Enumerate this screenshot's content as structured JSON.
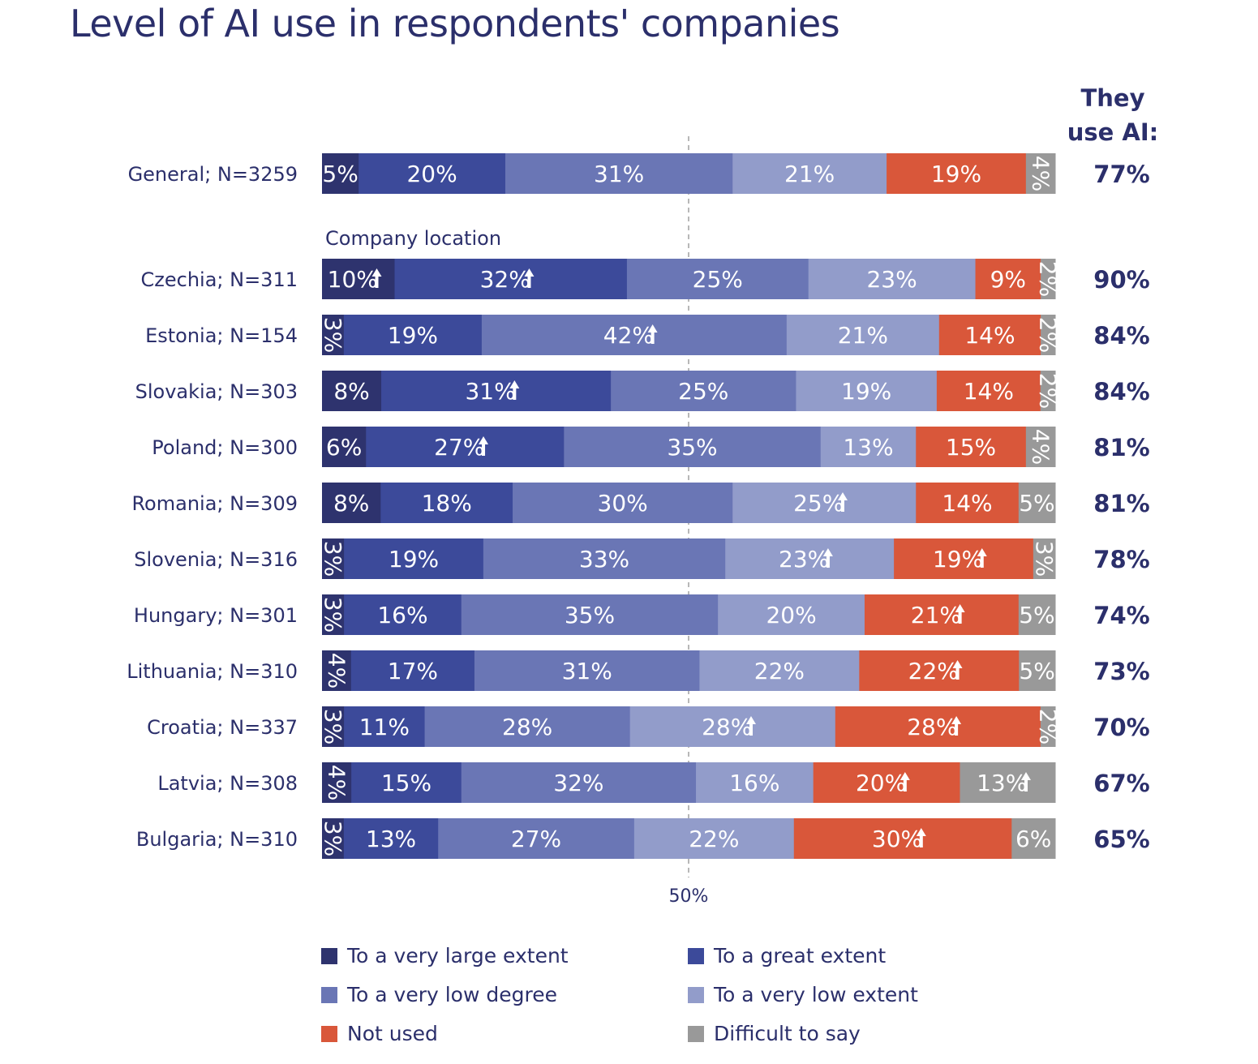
{
  "title": "Level of AI use in respondents' companies",
  "chart_data": {
    "type": "bar",
    "orientation": "horizontal",
    "stacked": true,
    "section_label": "Company location",
    "total_header": [
      "They",
      "use AI:"
    ],
    "axis_marker_label": "50%",
    "series": [
      {
        "name": "To a very large extent",
        "color": "#2e336e"
      },
      {
        "name": "To a great extent",
        "color": "#3c4a9a"
      },
      {
        "name": "To a very low degree",
        "color": "#6a76b5"
      },
      {
        "name": "To a very low extent",
        "color": "#929cca"
      },
      {
        "name": "Not used",
        "color": "#d9573a"
      },
      {
        "name": "Difficult to say",
        "color": "#999999"
      }
    ],
    "rows": [
      {
        "label": "General; N=3259",
        "values": [
          5,
          20,
          31,
          21,
          19,
          4
        ],
        "labels": [
          "5%",
          "20%",
          "31%",
          "21%",
          "19%",
          "4%"
        ],
        "up": [
          false,
          false,
          false,
          false,
          false,
          false
        ],
        "vertical": [
          false,
          false,
          false,
          false,
          false,
          true
        ],
        "total": "77%"
      },
      {
        "label": "Czechia; N=311",
        "values": [
          10,
          32,
          25,
          23,
          9,
          2
        ],
        "labels": [
          "10%",
          "32%",
          "25%",
          "23%",
          "9%",
          "2%"
        ],
        "up": [
          true,
          true,
          false,
          false,
          false,
          false
        ],
        "vertical": [
          false,
          false,
          false,
          false,
          false,
          true
        ],
        "total": "90%"
      },
      {
        "label": "Estonia; N=154",
        "values": [
          3,
          19,
          42,
          21,
          14,
          2
        ],
        "labels": [
          "3%",
          "19%",
          "42%",
          "21%",
          "14%",
          "2%"
        ],
        "up": [
          false,
          false,
          true,
          false,
          false,
          false
        ],
        "vertical": [
          true,
          false,
          false,
          false,
          false,
          true
        ],
        "total": "84%"
      },
      {
        "label": "Slovakia; N=303",
        "values": [
          8,
          31,
          25,
          19,
          14,
          2
        ],
        "labels": [
          "8%",
          "31%",
          "25%",
          "19%",
          "14%",
          "2%"
        ],
        "up": [
          false,
          true,
          false,
          false,
          false,
          false
        ],
        "vertical": [
          false,
          false,
          false,
          false,
          false,
          true
        ],
        "total": "84%"
      },
      {
        "label": "Poland; N=300",
        "values": [
          6,
          27,
          35,
          13,
          15,
          4
        ],
        "labels": [
          "6%",
          "27%",
          "35%",
          "13%",
          "15%",
          "4%"
        ],
        "up": [
          false,
          true,
          false,
          false,
          false,
          false
        ],
        "vertical": [
          false,
          false,
          false,
          false,
          false,
          true
        ],
        "total": "81%"
      },
      {
        "label": "Romania; N=309",
        "values": [
          8,
          18,
          30,
          25,
          14,
          5
        ],
        "labels": [
          "8%",
          "18%",
          "30%",
          "25%",
          "14%",
          "5%"
        ],
        "up": [
          false,
          false,
          false,
          true,
          false,
          false
        ],
        "vertical": [
          false,
          false,
          false,
          false,
          false,
          false
        ],
        "total": "81%"
      },
      {
        "label": "Slovenia; N=316",
        "values": [
          3,
          19,
          33,
          23,
          19,
          3
        ],
        "labels": [
          "3%",
          "19%",
          "33%",
          "23%",
          "19%",
          "3%"
        ],
        "up": [
          false,
          false,
          false,
          true,
          true,
          false
        ],
        "vertical": [
          true,
          false,
          false,
          false,
          false,
          true
        ],
        "total": "78%"
      },
      {
        "label": "Hungary; N=301",
        "values": [
          3,
          16,
          35,
          20,
          21,
          5
        ],
        "labels": [
          "3%",
          "16%",
          "35%",
          "20%",
          "21%",
          "5%"
        ],
        "up": [
          false,
          false,
          false,
          false,
          true,
          false
        ],
        "vertical": [
          true,
          false,
          false,
          false,
          false,
          false
        ],
        "total": "74%"
      },
      {
        "label": "Lithuania; N=310",
        "values": [
          4,
          17,
          31,
          22,
          22,
          5
        ],
        "labels": [
          "4%",
          "17%",
          "31%",
          "22%",
          "22%",
          "5%"
        ],
        "up": [
          false,
          false,
          false,
          false,
          true,
          false
        ],
        "vertical": [
          true,
          false,
          false,
          false,
          false,
          false
        ],
        "total": "73%"
      },
      {
        "label": "Croatia; N=337",
        "values": [
          3,
          11,
          28,
          28,
          28,
          2
        ],
        "labels": [
          "3%",
          "11%",
          "28%",
          "28%",
          "28%",
          "2%"
        ],
        "up": [
          false,
          false,
          false,
          true,
          true,
          false
        ],
        "vertical": [
          true,
          false,
          false,
          false,
          false,
          true
        ],
        "total": "70%"
      },
      {
        "label": "Latvia; N=308",
        "values": [
          4,
          15,
          32,
          16,
          20,
          13
        ],
        "labels": [
          "4%",
          "15%",
          "32%",
          "16%",
          "20%",
          "13%"
        ],
        "up": [
          false,
          false,
          false,
          false,
          true,
          true
        ],
        "vertical": [
          true,
          false,
          false,
          false,
          false,
          false
        ],
        "total": "67%"
      },
      {
        "label": "Bulgaria; N=310",
        "values": [
          3,
          13,
          27,
          22,
          30,
          6
        ],
        "labels": [
          "3%",
          "13%",
          "27%",
          "22%",
          "30%",
          "6%"
        ],
        "up": [
          false,
          false,
          false,
          false,
          true,
          false
        ],
        "vertical": [
          true,
          false,
          false,
          false,
          false,
          false
        ],
        "total": "65%"
      }
    ]
  }
}
